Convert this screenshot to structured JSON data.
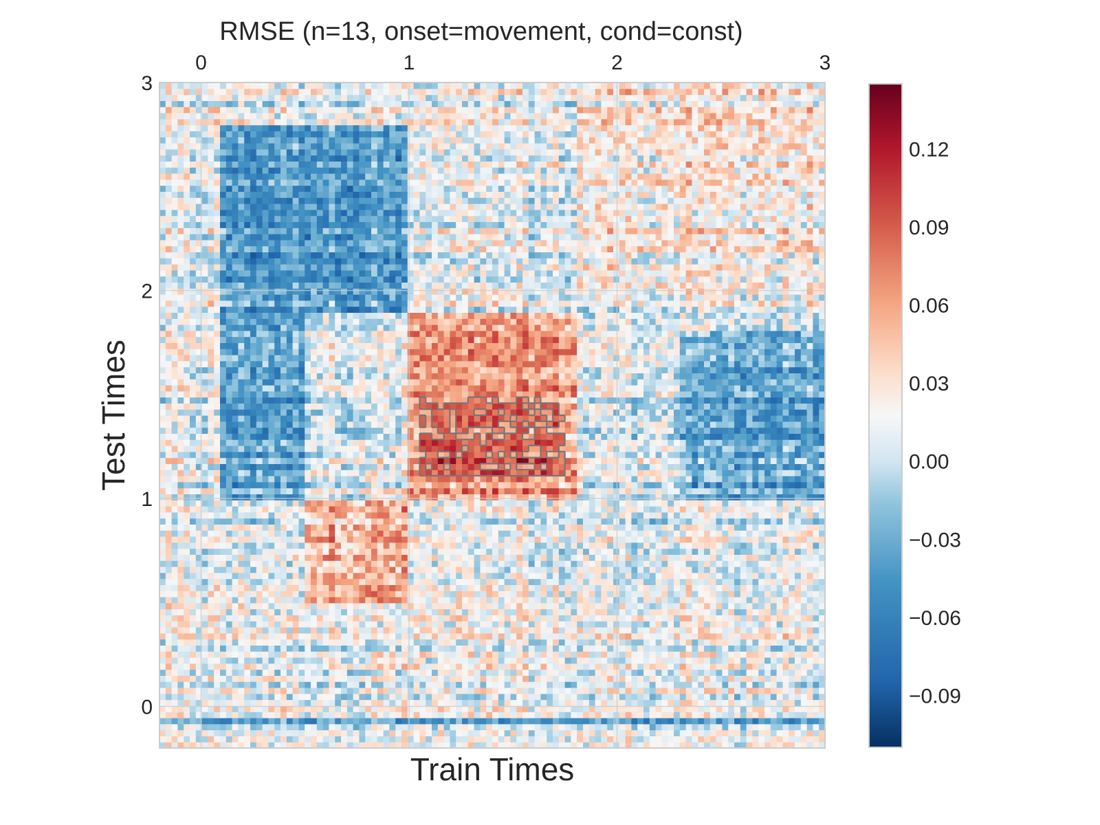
{
  "chart_data": {
    "type": "heatmap",
    "title": "RMSE (n=13, onset=movement, cond=const)",
    "xlabel": "Train Times",
    "ylabel": "Test Times",
    "xlim": [
      -0.2,
      3.0
    ],
    "ylim": [
      -0.2,
      3.0
    ],
    "x_ticks": [
      0,
      1,
      2,
      3
    ],
    "y_ticks": [
      0,
      1,
      2,
      3
    ],
    "x_tick_labels": [
      "0",
      "1",
      "2",
      "3"
    ],
    "y_tick_labels": [
      "0",
      "1",
      "2",
      "3"
    ],
    "x_axis_position": "top",
    "grid": true,
    "colormap": "RdBu_r",
    "color_range": [
      -0.11,
      0.145
    ],
    "colorbar_ticks": [
      0.12,
      0.09,
      0.06,
      0.03,
      0.0,
      -0.03,
      -0.06,
      -0.09
    ],
    "colorbar_tick_labels": [
      "0.12",
      "0.09",
      "0.06",
      "0.03",
      "0.00",
      "−0.03",
      "−0.06",
      "−0.09"
    ],
    "colorbar_position": "right",
    "significance_contour": true,
    "regions": [
      {
        "x": [
          1.0,
          1.8
        ],
        "y": [
          1.0,
          1.9
        ],
        "value": 0.09
      },
      {
        "x": [
          1.05,
          1.75
        ],
        "y": [
          1.1,
          1.5
        ],
        "value": 0.12
      },
      {
        "x": [
          0.5,
          1.0
        ],
        "y": [
          0.5,
          1.0
        ],
        "value": 0.08
      },
      {
        "x": [
          0.1,
          1.0
        ],
        "y": [
          1.9,
          2.8
        ],
        "value": -0.06
      },
      {
        "x": [
          0.1,
          0.5
        ],
        "y": [
          1.0,
          1.9
        ],
        "value": -0.05
      },
      {
        "x": [
          2.3,
          3.0
        ],
        "y": [
          1.0,
          1.8
        ],
        "value": -0.05
      },
      {
        "x": [
          -0.2,
          3.0
        ],
        "y": [
          -0.09,
          -0.05
        ],
        "value": -0.07
      },
      {
        "x": [
          1.8,
          3.0
        ],
        "y": [
          2.0,
          3.0
        ],
        "value": 0.04
      }
    ]
  }
}
